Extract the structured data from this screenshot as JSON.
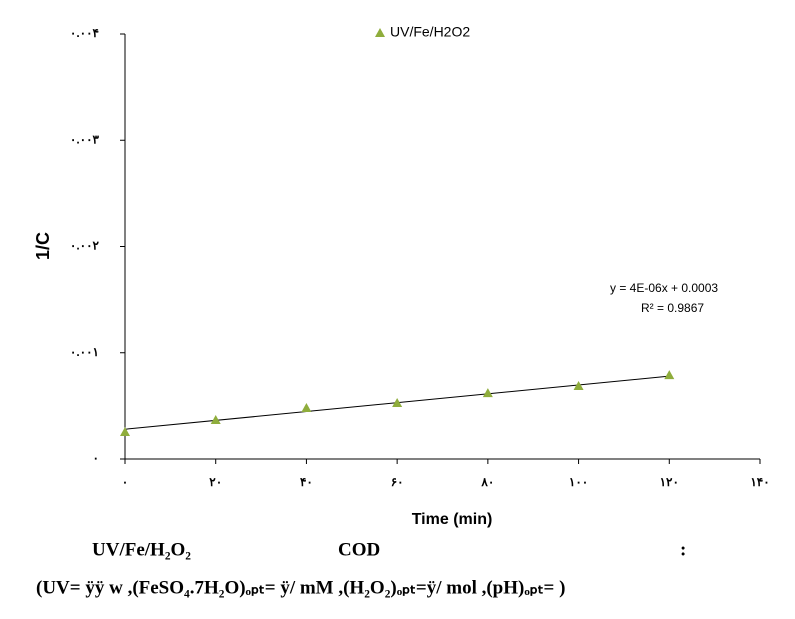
{
  "chart_data": {
    "type": "scatter",
    "x_label": "Time (min)",
    "y_label": "1/C",
    "series": [
      {
        "name": "UV/Fe/H2O2",
        "color": "#8fad3c",
        "x": [
          0,
          20,
          40,
          60,
          80,
          100,
          120
        ],
        "values": [
          0.000254,
          0.000367,
          0.00048,
          0.000527,
          0.00062,
          0.000687,
          0.00079
        ]
      }
    ],
    "trendline": {
      "x": [
        0,
        120
      ],
      "values": [
        0.00028,
        0.00078
      ],
      "color": "#000000",
      "equation": "y = 4E-06x + 0.0003",
      "r_squared": "R² = 0.9867"
    },
    "xlim": [
      0,
      140
    ],
    "ylim": [
      0,
      0.004
    ],
    "xticks": [
      {
        "value": 0,
        "label": "۰"
      },
      {
        "value": 20,
        "label": "۲۰"
      },
      {
        "value": 40,
        "label": "۴۰"
      },
      {
        "value": 60,
        "label": "۶۰"
      },
      {
        "value": 80,
        "label": "۸۰"
      },
      {
        "value": 100,
        "label": "۱۰۰"
      },
      {
        "value": 120,
        "label": "۱۲۰"
      },
      {
        "value": 140,
        "label": "۱۴۰"
      }
    ],
    "yticks": [
      {
        "value": 0,
        "label": "۰"
      },
      {
        "value": 0.001,
        "label": "۰.۰۰۱"
      },
      {
        "value": 0.002,
        "label": "۰.۰۰۲"
      },
      {
        "value": 0.003,
        "label": "۰.۰۰۳"
      },
      {
        "value": 0.004,
        "label": "۰.۰۰۴"
      }
    ],
    "grid": false,
    "legend": "top",
    "caption": [
      "UV/Fe/H₂O₂",
      "COD",
      ":",
      "(UV= ÿÿ w ,(FeSO₄.7H₂O)ₒₚₜ= ÿ/   mM ,(H₂O₂)ₒₚₜ=ÿ/     mol ,(pH)ₒₚₜ=  )"
    ]
  }
}
